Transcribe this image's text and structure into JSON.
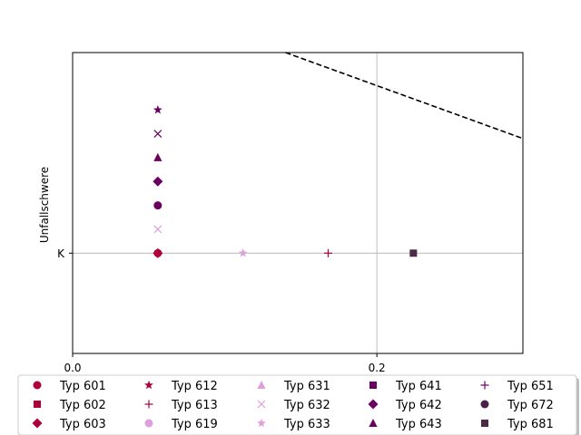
{
  "chart_data": {
    "type": "scatter",
    "title": "",
    "xlabel": "",
    "ylabel": "Unfallschwere",
    "xlim": [
      0.0,
      0.296
    ],
    "ylim": [
      -1.05,
      2.1
    ],
    "x_ticks": [
      {
        "value": 0.0,
        "label": "0.0"
      },
      {
        "value": 0.2,
        "label": "0.2"
      }
    ],
    "y_ticks": [
      {
        "value": 0,
        "label": "K"
      }
    ],
    "grid": true,
    "legend_placement": "bottom",
    "reference_line": {
      "style": "dashed",
      "color": "#000000",
      "x": [
        0.14,
        0.296
      ],
      "y": [
        2.1,
        1.2
      ]
    },
    "series": [
      {
        "name": "Typ 601",
        "marker": "circle",
        "color": "#b0003a",
        "points": [
          [
            0.056,
            0.0
          ]
        ]
      },
      {
        "name": "Typ 602",
        "marker": "square",
        "color": "#b0003a",
        "points": []
      },
      {
        "name": "Typ 603",
        "marker": "diamond",
        "color": "#b0003a",
        "points": [
          [
            0.056,
            0.0
          ]
        ]
      },
      {
        "name": "Typ 612",
        "marker": "star",
        "color": "#b0003a",
        "points": []
      },
      {
        "name": "Typ 613",
        "marker": "plus",
        "color": "#b0003a",
        "points": [
          [
            0.168,
            0.0
          ]
        ]
      },
      {
        "name": "Typ 619",
        "marker": "circle",
        "color": "#dda0dd",
        "points": []
      },
      {
        "name": "Typ 631",
        "marker": "triangle",
        "color": "#dda0dd",
        "points": []
      },
      {
        "name": "Typ 632",
        "marker": "x",
        "color": "#dda0dd",
        "points": [
          [
            0.056,
            0.25
          ]
        ]
      },
      {
        "name": "Typ 633",
        "marker": "star",
        "color": "#dda0dd",
        "points": [
          [
            0.112,
            0.0
          ]
        ]
      },
      {
        "name": "Typ 641",
        "marker": "square",
        "color": "#6a005f",
        "points": []
      },
      {
        "name": "Typ 642",
        "marker": "diamond",
        "color": "#6a005f",
        "points": [
          [
            0.056,
            0.75
          ]
        ]
      },
      {
        "name": "Typ 643",
        "marker": "triangle",
        "color": "#6a005f",
        "points": [
          [
            0.056,
            1.0
          ]
        ]
      },
      {
        "name": "Typ 651",
        "marker": "plus",
        "color": "#6a005f",
        "points": []
      },
      {
        "name": "Typ 672",
        "marker": "circle",
        "color": "#4a1f47",
        "points": []
      },
      {
        "name": "Typ 681",
        "marker": "square",
        "color": "#4a2a45",
        "points": [
          [
            0.224,
            0.0
          ]
        ]
      },
      {
        "name": "",
        "marker": "circle",
        "color": "#6a005f",
        "points": [
          [
            0.056,
            0.5
          ]
        ]
      },
      {
        "name": "",
        "marker": "x",
        "color": "#6a005f",
        "points": [
          [
            0.056,
            1.25
          ]
        ]
      },
      {
        "name": "",
        "marker": "star",
        "color": "#6a005f",
        "points": [
          [
            0.056,
            1.5
          ]
        ]
      }
    ]
  }
}
